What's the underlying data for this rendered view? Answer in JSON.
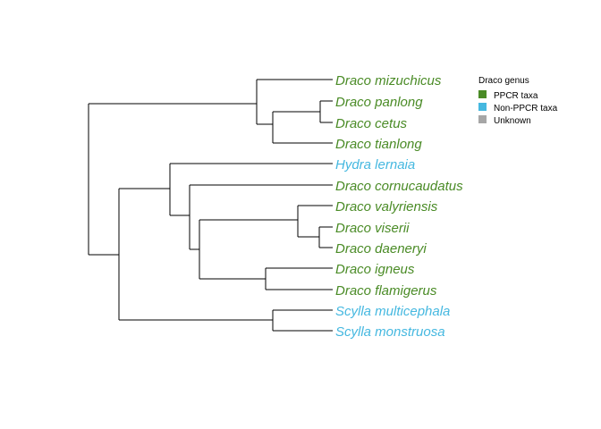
{
  "tree": {
    "tips": [
      {
        "label": "Draco mizuchicus",
        "group": "ppcr"
      },
      {
        "label": "Draco panlong",
        "group": "ppcr"
      },
      {
        "label": "Draco cetus",
        "group": "ppcr"
      },
      {
        "label": "Draco tianlong",
        "group": "ppcr"
      },
      {
        "label": "Hydra lernaia",
        "group": "non_ppcr"
      },
      {
        "label": "Draco cornucaudatus",
        "group": "ppcr"
      },
      {
        "label": "Draco valyriensis",
        "group": "ppcr"
      },
      {
        "label": "Draco viserii",
        "group": "ppcr"
      },
      {
        "label": "Draco daeneryi",
        "group": "ppcr"
      },
      {
        "label": "Draco igneus",
        "group": "ppcr"
      },
      {
        "label": "Draco flamigerus",
        "group": "ppcr"
      },
      {
        "label": "Scylla multicephala",
        "group": "non_ppcr"
      },
      {
        "label": "Scylla monstruosa",
        "group": "non_ppcr"
      }
    ],
    "branch_color": "#000000"
  },
  "legend": {
    "title": "Draco genus",
    "items": [
      {
        "key": "ppcr",
        "label": "PPCR taxa",
        "color": "#4A8B26"
      },
      {
        "key": "non_ppcr",
        "label": "Non-PPCR taxa",
        "color": "#45B8E0"
      },
      {
        "key": "unknown",
        "label": "Unknown",
        "color": "#A6A6A6"
      }
    ]
  }
}
